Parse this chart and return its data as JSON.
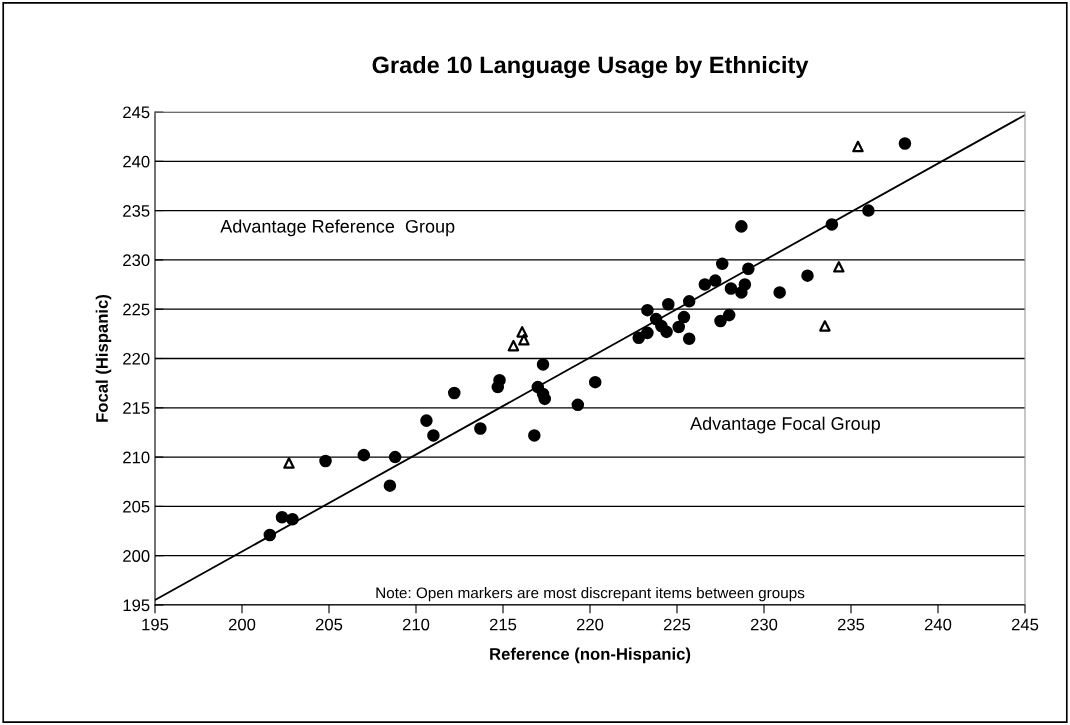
{
  "chart_data": {
    "type": "scatter",
    "title": "Grade 10 Language Usage by Ethnicity",
    "xlabel": "Reference (non-Hispanic)",
    "ylabel": "Focal (Hispanic)",
    "xlim": [
      195,
      245
    ],
    "ylim": [
      195,
      245
    ],
    "xticks": [
      195,
      200,
      205,
      210,
      215,
      220,
      225,
      230,
      235,
      240,
      245
    ],
    "yticks": [
      195,
      200,
      205,
      210,
      215,
      220,
      225,
      230,
      235,
      240,
      245
    ],
    "grid": "y",
    "series": [
      {
        "marker": "circle",
        "color": "#000000",
        "x": [
          201.6,
          202.3,
          202.9,
          204.8,
          207.0,
          208.8,
          208.5,
          210.6,
          211.0,
          212.2,
          213.7,
          214.7,
          214.8,
          216.8,
          217.0,
          217.3,
          217.3,
          217.4,
          219.3,
          220.3,
          222.8,
          223.3,
          223.3,
          223.8,
          224.1,
          224.4,
          224.5,
          225.1,
          225.4,
          225.7,
          225.7,
          226.6,
          227.2,
          227.5,
          227.6,
          228.1,
          228.0,
          228.7,
          228.7,
          228.9,
          229.1,
          230.9,
          232.5,
          233.9,
          236.0,
          238.1
        ],
        "values": [
          202.1,
          203.9,
          203.7,
          209.6,
          210.2,
          210.0,
          207.1,
          213.7,
          212.2,
          216.5,
          212.9,
          217.1,
          217.8,
          212.2,
          217.1,
          219.4,
          216.4,
          215.9,
          215.3,
          217.6,
          222.1,
          224.9,
          222.6,
          224.0,
          223.3,
          222.7,
          225.5,
          223.2,
          224.2,
          225.8,
          222.0,
          227.5,
          227.9,
          223.8,
          229.6,
          227.1,
          224.4,
          226.7,
          233.4,
          227.5,
          229.1,
          226.7,
          228.4,
          233.6,
          235.0,
          241.8
        ]
      },
      {
        "marker": "triangle",
        "color": "#000000",
        "x": [
          202.7,
          215.6,
          216.2,
          216.1,
          233.5,
          234.3,
          235.4
        ],
        "values": [
          209.4,
          221.3,
          221.9,
          222.7,
          223.3,
          229.3,
          241.5
        ]
      },
      {
        "type": "line",
        "marker": "none",
        "color": "#000000",
        "x": [
          195,
          245
        ],
        "values": [
          195.5,
          244.7
        ]
      }
    ],
    "annotations": [
      "Advantage Reference  Group",
      "Advantage Focal Group",
      "Note: Open markers are most discrepant items between groups"
    ]
  }
}
